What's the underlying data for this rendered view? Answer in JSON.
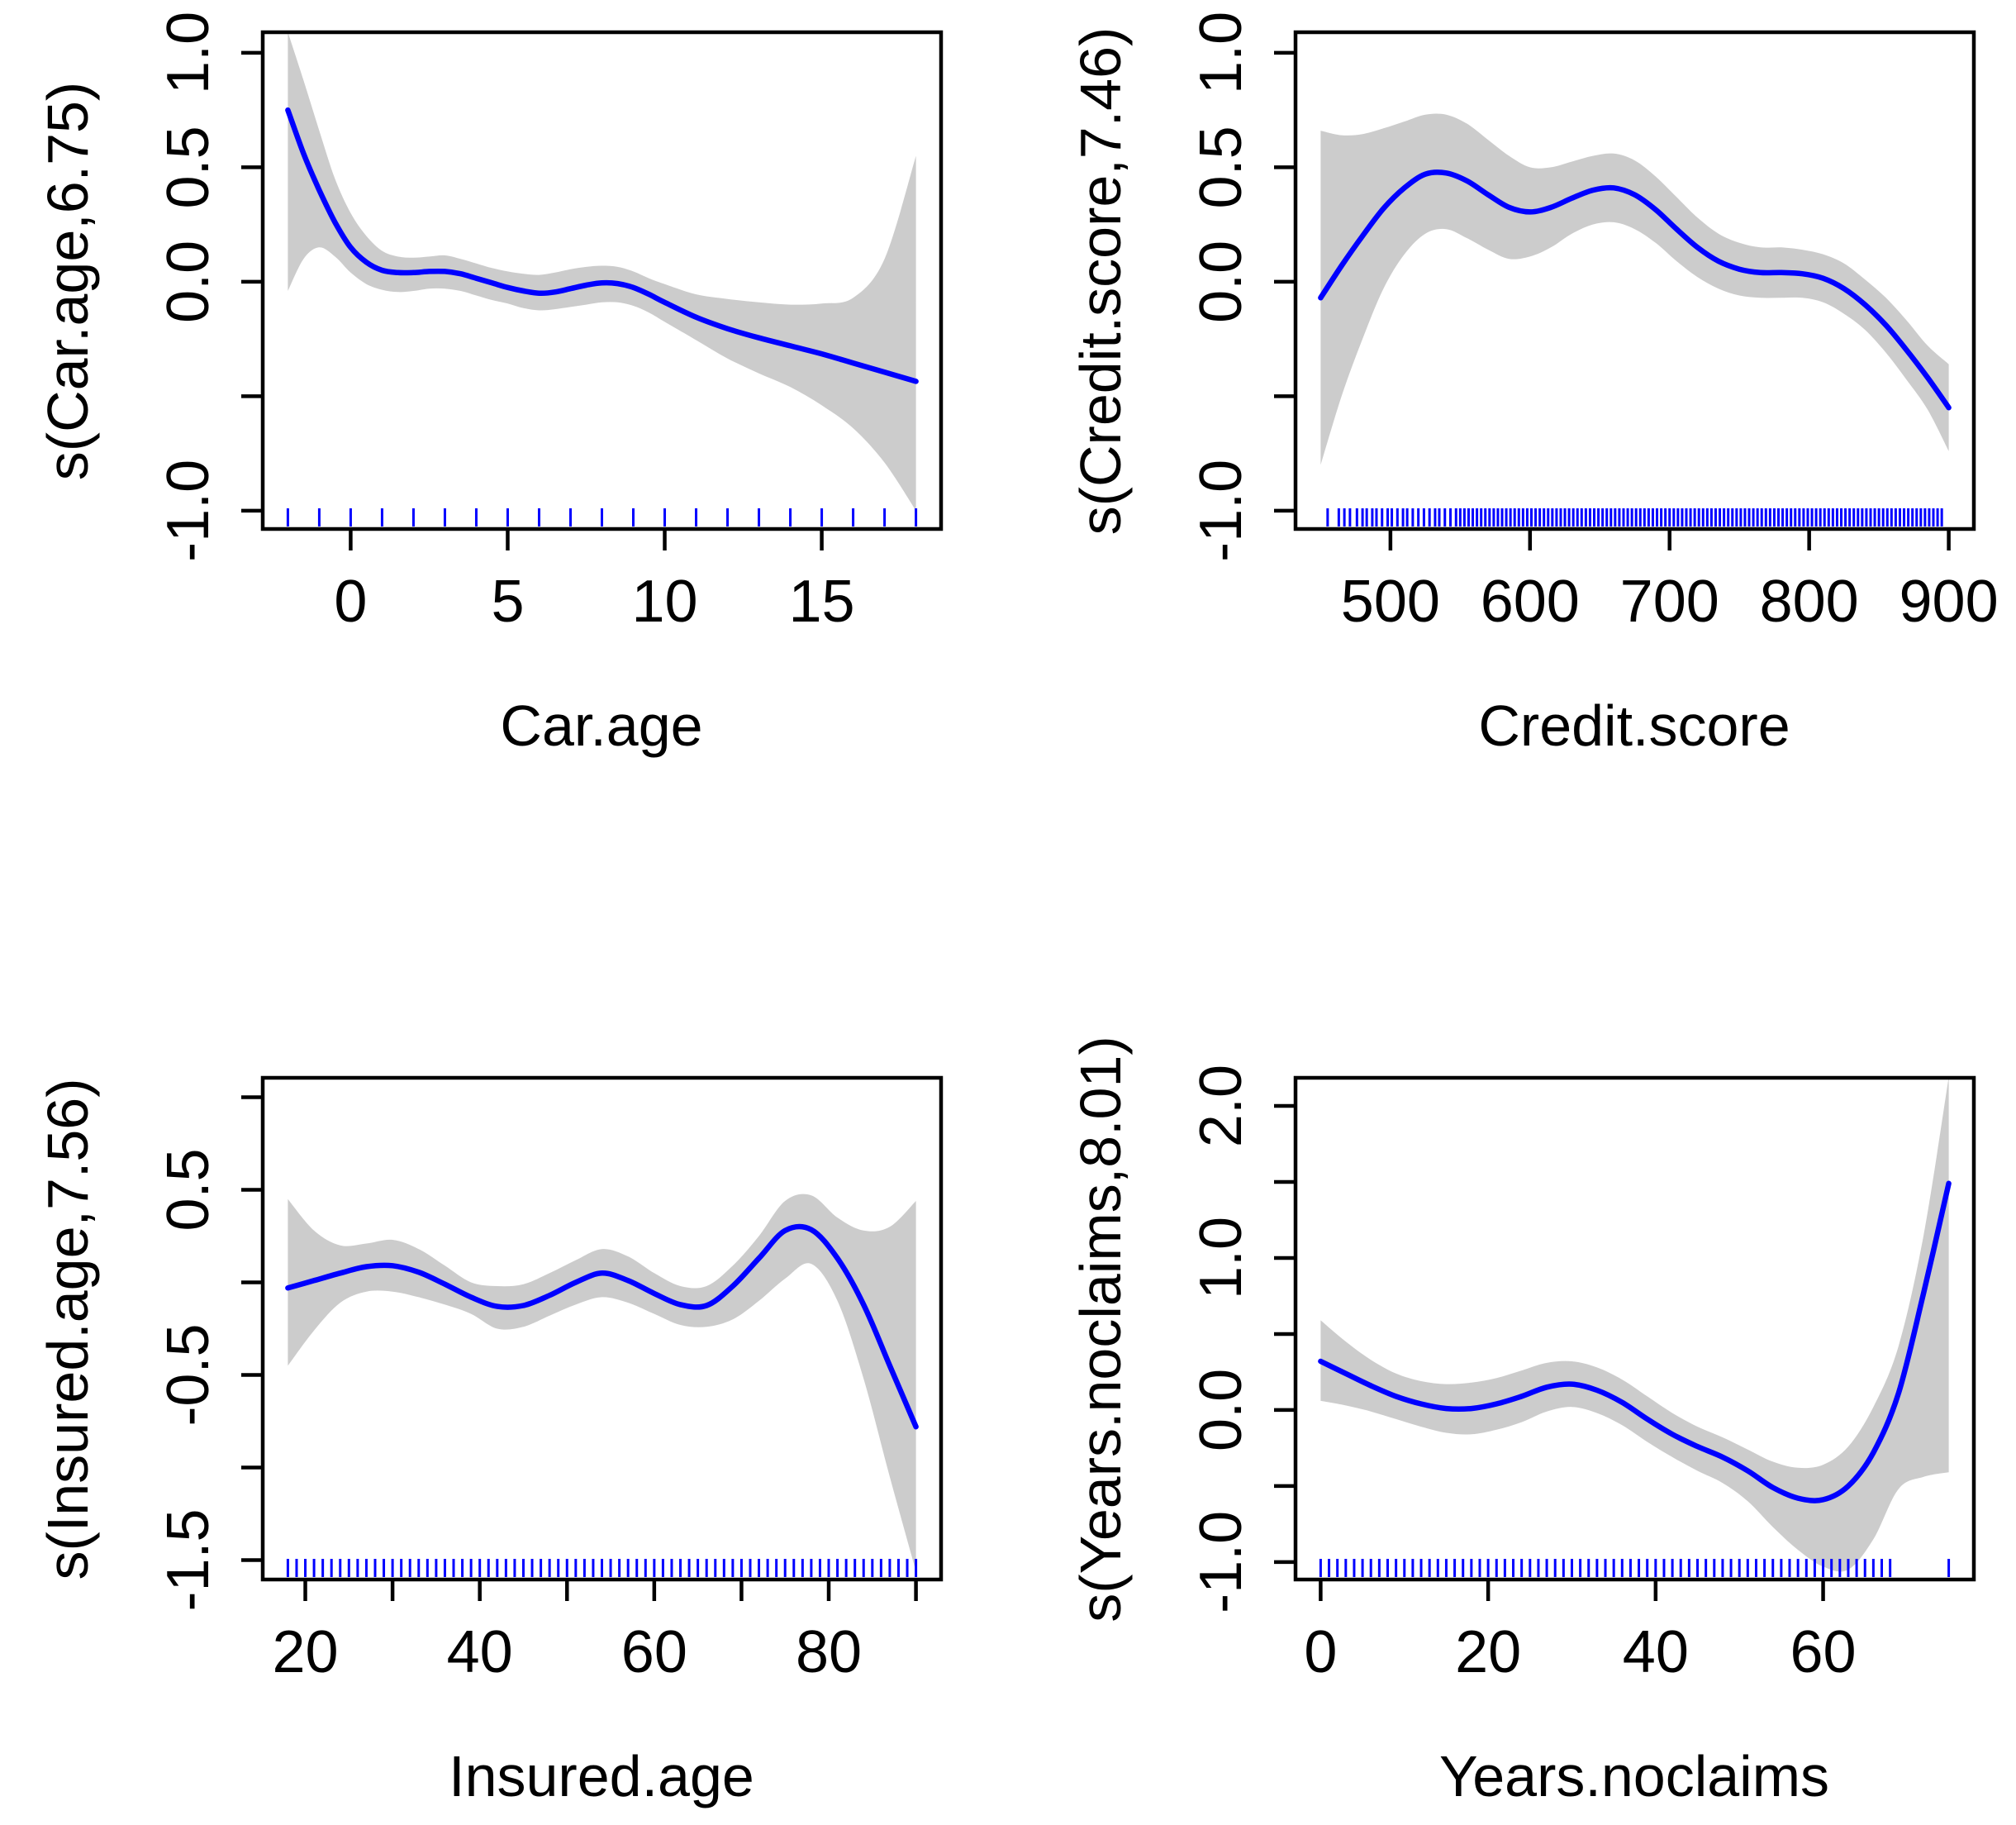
{
  "figure": {
    "background": "#ffffff",
    "description": "2x2 grid of GAM smooth term plots with confidence bands and data rugs"
  },
  "style": {
    "curve_color": "#0000ff",
    "band_color": "#cccccc",
    "rug_color": "#0000ff",
    "axis_color": "#000000",
    "text_color": "#000000"
  },
  "chart_data": [
    {
      "type": "line",
      "title": "",
      "xlabel": "Car.age",
      "ylabel": "s(Car.age,6.75)",
      "xlim": [
        -2.8,
        18.8
      ],
      "ylim": [
        -1.08,
        1.09
      ],
      "grid": false,
      "legend": null,
      "xticks": [
        {
          "v": 0,
          "label": "0"
        },
        {
          "v": 5,
          "label": "5"
        },
        {
          "v": 10,
          "label": "10"
        },
        {
          "v": 15,
          "label": "15"
        }
      ],
      "yticks": [
        {
          "v": 1.0,
          "label": "1.0"
        },
        {
          "v": 0.5,
          "label": "0.5"
        },
        {
          "v": 0.0,
          "label": "0.0"
        },
        {
          "v": -0.5,
          "label": ""
        },
        {
          "v": -1.0,
          "label": "-1.0"
        }
      ],
      "series": [
        {
          "name": "smooth fit",
          "x": [
            -2,
            -1.5,
            -1,
            -0.5,
            0,
            0.5,
            1,
            1.5,
            2,
            2.5,
            3,
            3.5,
            4,
            4.5,
            5,
            5.5,
            6,
            6.5,
            7,
            7.5,
            8,
            8.5,
            9,
            9.5,
            10,
            11,
            12,
            13,
            14,
            15,
            16,
            17,
            18
          ],
          "y": [
            0.75,
            0.56,
            0.4,
            0.26,
            0.15,
            0.085,
            0.05,
            0.04,
            0.04,
            0.045,
            0.045,
            0.035,
            0.015,
            -0.005,
            -0.025,
            -0.04,
            -0.05,
            -0.045,
            -0.03,
            -0.015,
            -0.005,
            -0.008,
            -0.025,
            -0.055,
            -0.09,
            -0.155,
            -0.205,
            -0.245,
            -0.28,
            -0.315,
            -0.355,
            -0.395,
            -0.435
          ]
        }
      ],
      "band": {
        "upper": [
          1.09,
          0.88,
          0.66,
          0.45,
          0.3,
          0.2,
          0.135,
          0.11,
          0.105,
          0.11,
          0.115,
          0.1,
          0.08,
          0.06,
          0.045,
          0.035,
          0.03,
          0.04,
          0.055,
          0.065,
          0.07,
          0.065,
          0.045,
          0.015,
          -0.01,
          -0.055,
          -0.075,
          -0.09,
          -0.1,
          -0.095,
          -0.07,
          0.1,
          0.55
        ],
        "lower": [
          -0.04,
          0.1,
          0.15,
          0.11,
          0.04,
          -0.01,
          -0.035,
          -0.045,
          -0.04,
          -0.03,
          -0.03,
          -0.04,
          -0.06,
          -0.08,
          -0.095,
          -0.115,
          -0.125,
          -0.12,
          -0.11,
          -0.1,
          -0.09,
          -0.09,
          -0.105,
          -0.135,
          -0.175,
          -0.255,
          -0.335,
          -0.4,
          -0.46,
          -0.54,
          -0.64,
          -0.79,
          -1.0
        ]
      },
      "rug": [
        -2,
        -1,
        0,
        1,
        2,
        3,
        4,
        5,
        6,
        7,
        8,
        9,
        10,
        11,
        12,
        13,
        14,
        15,
        16,
        17,
        18
      ]
    },
    {
      "type": "line",
      "title": "",
      "xlabel": "Credit.score",
      "ylabel": "s(Credit.score,7.46)",
      "xlim": [
        432,
        918
      ],
      "ylim": [
        -1.08,
        1.09
      ],
      "grid": false,
      "legend": null,
      "xticks": [
        {
          "v": 500,
          "label": "500"
        },
        {
          "v": 600,
          "label": "600"
        },
        {
          "v": 700,
          "label": "700"
        },
        {
          "v": 800,
          "label": "800"
        },
        {
          "v": 900,
          "label": "900"
        }
      ],
      "yticks": [
        {
          "v": 1.0,
          "label": "1.0"
        },
        {
          "v": 0.5,
          "label": "0.5"
        },
        {
          "v": 0.0,
          "label": "0.0"
        },
        {
          "v": -0.5,
          "label": ""
        },
        {
          "v": -1.0,
          "label": "-1.0"
        }
      ],
      "series": [
        {
          "name": "smooth fit",
          "x": [
            450,
            465,
            480,
            495,
            510,
            525,
            540,
            555,
            570,
            585,
            600,
            615,
            630,
            645,
            660,
            675,
            690,
            705,
            720,
            735,
            750,
            765,
            780,
            795,
            810,
            825,
            840,
            855,
            870,
            885,
            900
          ],
          "y": [
            -0.07,
            0.07,
            0.2,
            0.32,
            0.41,
            0.47,
            0.475,
            0.44,
            0.38,
            0.325,
            0.305,
            0.325,
            0.365,
            0.4,
            0.41,
            0.38,
            0.315,
            0.23,
            0.15,
            0.09,
            0.055,
            0.04,
            0.04,
            0.035,
            0.015,
            -0.03,
            -0.1,
            -0.19,
            -0.3,
            -0.42,
            -0.55
          ]
        }
      ],
      "band": {
        "upper": [
          0.66,
          0.64,
          0.645,
          0.67,
          0.7,
          0.73,
          0.73,
          0.69,
          0.62,
          0.55,
          0.5,
          0.5,
          0.525,
          0.55,
          0.56,
          0.53,
          0.46,
          0.37,
          0.28,
          0.21,
          0.17,
          0.15,
          0.15,
          0.14,
          0.12,
          0.08,
          0.01,
          -0.07,
          -0.17,
          -0.28,
          -0.36
        ],
        "lower": [
          -0.8,
          -0.5,
          -0.25,
          -0.03,
          0.12,
          0.21,
          0.23,
          0.19,
          0.14,
          0.1,
          0.11,
          0.15,
          0.21,
          0.25,
          0.26,
          0.23,
          0.17,
          0.09,
          0.02,
          -0.03,
          -0.06,
          -0.07,
          -0.07,
          -0.07,
          -0.09,
          -0.14,
          -0.21,
          -0.31,
          -0.43,
          -0.56,
          -0.74
        ]
      },
      "rug": [
        455,
        463,
        467,
        471,
        476,
        480,
        483,
        487,
        490,
        494,
        498,
        501,
        505,
        509,
        512,
        516,
        520,
        524,
        528,
        532,
        535,
        539,
        543,
        547,
        550,
        553,
        556,
        559,
        562,
        565,
        568,
        571,
        574,
        577,
        580,
        583,
        586,
        589,
        592,
        595,
        598,
        601,
        604,
        607,
        610,
        613,
        616,
        619,
        622,
        625,
        628,
        631,
        634,
        637,
        640,
        643,
        646,
        649,
        652,
        655,
        658,
        661,
        664,
        667,
        670,
        673,
        676,
        679,
        682,
        685,
        688,
        691,
        694,
        697,
        700,
        703,
        706,
        709,
        712,
        715,
        718,
        721,
        724,
        727,
        730,
        733,
        736,
        739,
        742,
        745,
        748,
        751,
        754,
        757,
        760,
        763,
        766,
        769,
        772,
        775,
        778,
        781,
        784,
        787,
        790,
        793,
        796,
        799,
        802,
        805,
        808,
        811,
        814,
        817,
        820,
        823,
        826,
        829,
        832,
        835,
        838,
        841,
        844,
        847,
        850,
        853,
        856,
        859,
        862,
        865,
        868,
        871,
        874,
        877,
        880,
        883,
        886,
        889,
        892,
        895
      ]
    },
    {
      "type": "line",
      "title": "",
      "xlabel": "Insured.age",
      "ylabel": "s(Insured.age,7.56)",
      "xlim": [
        15.12,
        92.88
      ],
      "ylim": [
        -1.605,
        1.105
      ],
      "grid": false,
      "legend": null,
      "xticks": [
        {
          "v": 20,
          "label": "20"
        },
        {
          "v": 30,
          "label": ""
        },
        {
          "v": 40,
          "label": "40"
        },
        {
          "v": 50,
          "label": ""
        },
        {
          "v": 60,
          "label": "60"
        },
        {
          "v": 70,
          "label": ""
        },
        {
          "v": 80,
          "label": "80"
        },
        {
          "v": 90,
          "label": ""
        }
      ],
      "yticks": [
        {
          "v": 1.0,
          "label": ""
        },
        {
          "v": 0.5,
          "label": "0.5"
        },
        {
          "v": 0.0,
          "label": ""
        },
        {
          "v": -0.5,
          "label": "-0.5"
        },
        {
          "v": -1.0,
          "label": ""
        },
        {
          "v": -1.5,
          "label": "-1.5"
        }
      ],
      "series": [
        {
          "name": "smooth fit",
          "x": [
            18,
            21,
            24,
            27,
            30,
            33,
            36,
            39,
            42,
            45,
            48,
            51,
            54,
            57,
            60,
            63,
            66,
            69,
            72,
            75,
            78,
            81,
            84,
            87,
            90
          ],
          "y": [
            -0.03,
            0.01,
            0.05,
            0.085,
            0.09,
            0.055,
            -0.01,
            -0.08,
            -0.13,
            -0.125,
            -0.07,
            0.0,
            0.05,
            0.01,
            -0.06,
            -0.12,
            -0.125,
            -0.02,
            0.13,
            0.28,
            0.285,
            0.13,
            -0.12,
            -0.45,
            -0.78
          ]
        }
      ],
      "band": {
        "upper": [
          0.45,
          0.28,
          0.2,
          0.21,
          0.23,
          0.18,
          0.09,
          0.0,
          -0.02,
          -0.01,
          0.05,
          0.12,
          0.18,
          0.14,
          0.05,
          -0.02,
          -0.02,
          0.09,
          0.25,
          0.44,
          0.47,
          0.35,
          0.28,
          0.3,
          0.44
        ],
        "lower": [
          -0.45,
          -0.26,
          -0.11,
          -0.05,
          -0.05,
          -0.08,
          -0.12,
          -0.17,
          -0.25,
          -0.24,
          -0.18,
          -0.12,
          -0.08,
          -0.11,
          -0.17,
          -0.23,
          -0.24,
          -0.2,
          -0.1,
          0.02,
          0.1,
          -0.1,
          -0.52,
          -1.05,
          -1.56
        ]
      },
      "rug": [
        18,
        19,
        20,
        21,
        22,
        23,
        24,
        25,
        26,
        27,
        28,
        29,
        30,
        31,
        32,
        33,
        34,
        35,
        36,
        37,
        38,
        39,
        40,
        41,
        42,
        43,
        44,
        45,
        46,
        47,
        48,
        49,
        50,
        51,
        52,
        53,
        54,
        55,
        56,
        57,
        58,
        59,
        60,
        61,
        62,
        63,
        64,
        65,
        66,
        67,
        68,
        69,
        70,
        71,
        72,
        73,
        74,
        75,
        76,
        77,
        78,
        79,
        80,
        81,
        82,
        83,
        84,
        85,
        86,
        87,
        88,
        89,
        90
      ]
    },
    {
      "type": "line",
      "title": "",
      "xlabel": "Years.noclaims",
      "ylabel": "s(Years.noclaims,8.01)",
      "xlim": [
        -3,
        78
      ],
      "ylim": [
        -1.115,
        2.185
      ],
      "grid": false,
      "legend": null,
      "xticks": [
        {
          "v": 0,
          "label": "0"
        },
        {
          "v": 20,
          "label": "20"
        },
        {
          "v": 40,
          "label": "40"
        },
        {
          "v": 60,
          "label": "60"
        }
      ],
      "yticks": [
        {
          "v": 2.0,
          "label": "2.0"
        },
        {
          "v": 1.5,
          "label": ""
        },
        {
          "v": 1.0,
          "label": "1.0"
        },
        {
          "v": 0.5,
          "label": ""
        },
        {
          "v": 0.0,
          "label": "0.0"
        },
        {
          "v": -0.5,
          "label": ""
        },
        {
          "v": -1.0,
          "label": "-1.0"
        }
      ],
      "series": [
        {
          "name": "smooth fit",
          "x": [
            0,
            3,
            6,
            9,
            12,
            15,
            18,
            21,
            24,
            27,
            30,
            33,
            36,
            39,
            42,
            45,
            48,
            51,
            54,
            57,
            60,
            63,
            66,
            69,
            72,
            75
          ],
          "y": [
            0.32,
            0.24,
            0.16,
            0.09,
            0.04,
            0.01,
            0.01,
            0.04,
            0.09,
            0.15,
            0.17,
            0.13,
            0.05,
            -0.06,
            -0.16,
            -0.24,
            -0.31,
            -0.4,
            -0.51,
            -0.58,
            -0.59,
            -0.5,
            -0.28,
            0.11,
            0.77,
            1.49
          ]
        }
      ],
      "band": {
        "upper": [
          0.59,
          0.45,
          0.33,
          0.24,
          0.19,
          0.17,
          0.18,
          0.21,
          0.26,
          0.31,
          0.32,
          0.28,
          0.2,
          0.09,
          -0.02,
          -0.11,
          -0.18,
          -0.26,
          -0.34,
          -0.38,
          -0.36,
          -0.24,
          0.02,
          0.42,
          1.15,
          2.19
        ],
        "lower": [
          0.06,
          0.03,
          -0.01,
          -0.06,
          -0.11,
          -0.15,
          -0.16,
          -0.13,
          -0.08,
          -0.01,
          0.02,
          -0.02,
          -0.1,
          -0.21,
          -0.31,
          -0.4,
          -0.48,
          -0.6,
          -0.77,
          -0.92,
          -1.03,
          -1.05,
          -0.85,
          -0.52,
          -0.44,
          -0.41
        ]
      },
      "rug": [
        0,
        1,
        2,
        3,
        4,
        5,
        6,
        7,
        8,
        9,
        10,
        11,
        12,
        13,
        14,
        15,
        16,
        17,
        18,
        19,
        20,
        21,
        22,
        23,
        24,
        25,
        26,
        27,
        28,
        29,
        30,
        31,
        32,
        33,
        34,
        35,
        36,
        37,
        38,
        39,
        40,
        41,
        42,
        43,
        44,
        45,
        46,
        47,
        48,
        49,
        50,
        51,
        52,
        53,
        54,
        55,
        56,
        57,
        58,
        59,
        60,
        61,
        62,
        63,
        64,
        65,
        66,
        67,
        68,
        75
      ]
    }
  ]
}
